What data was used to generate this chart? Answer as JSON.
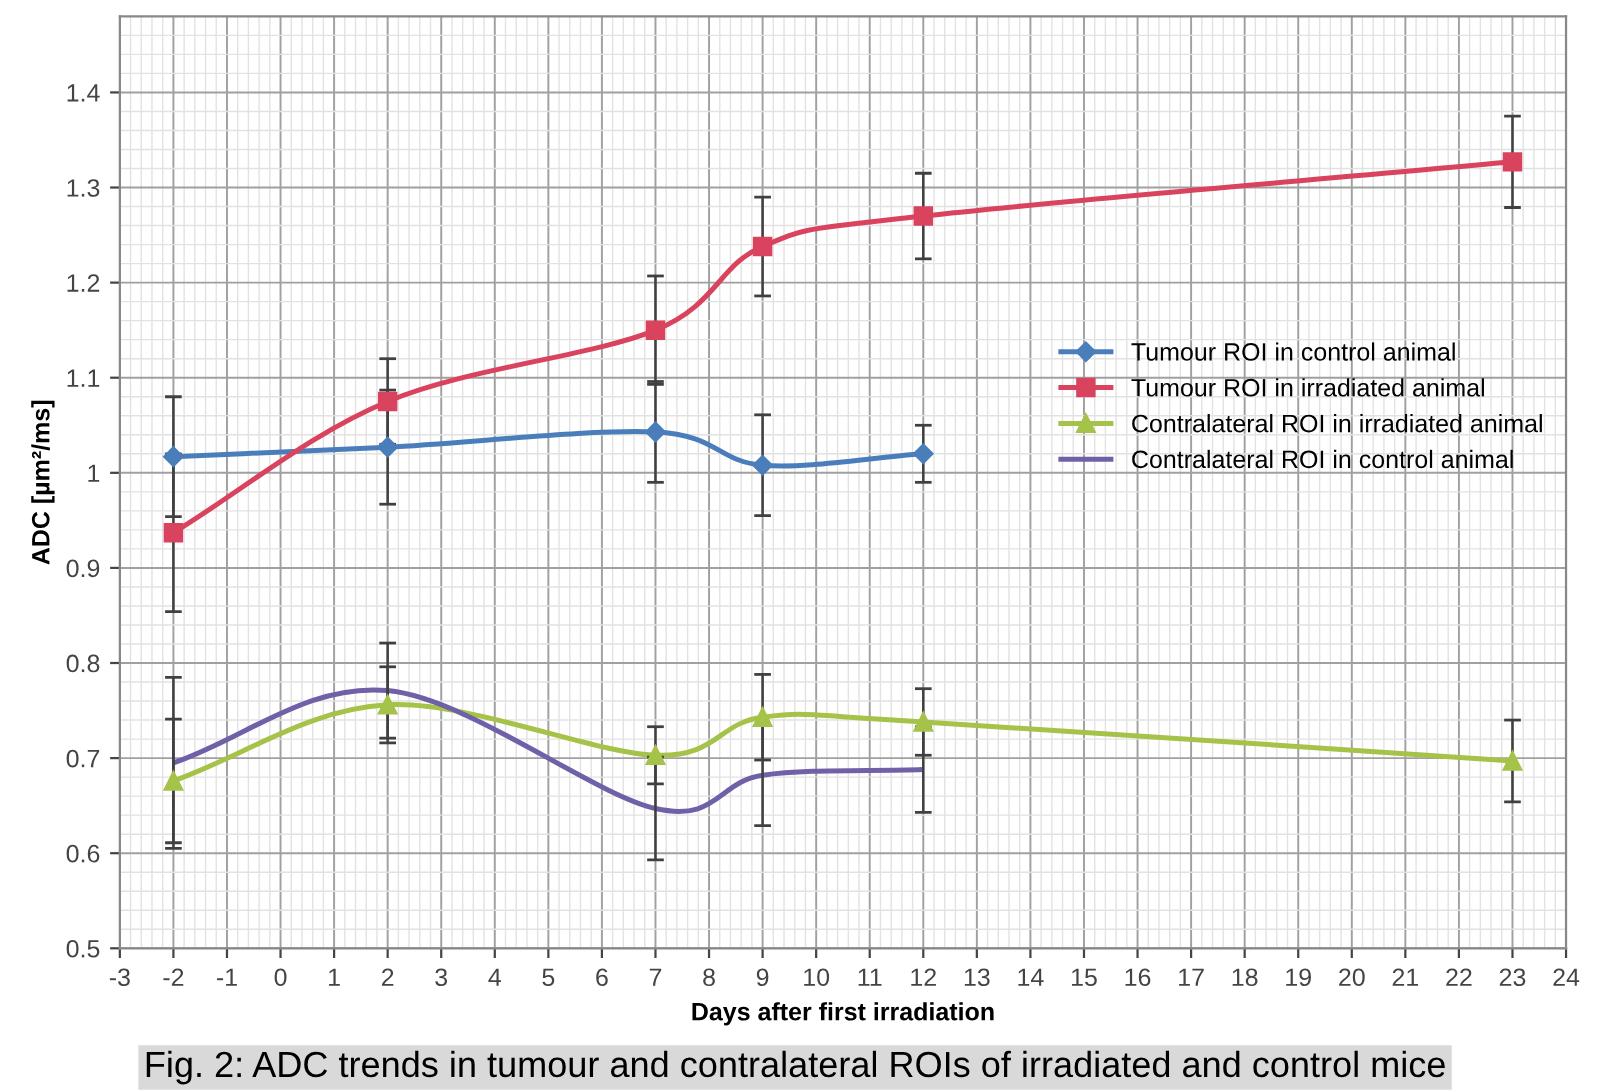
{
  "chart_data": {
    "type": "line",
    "xlabel": "Days after first irradiation",
    "ylabel": "ADC [µm²/ms]",
    "xlim": [
      -3,
      24
    ],
    "xticks": [
      -3,
      -2,
      -1,
      0,
      1,
      2,
      3,
      4,
      5,
      6,
      7,
      8,
      9,
      10,
      11,
      12,
      13,
      14,
      15,
      16,
      17,
      18,
      19,
      20,
      21,
      22,
      23,
      24
    ],
    "ylim": [
      0.5,
      1.48
    ],
    "yticks": [
      0.5,
      0.6,
      0.7,
      0.8,
      0.9,
      1,
      1.1,
      1.2,
      1.3,
      1.4
    ],
    "grid": true,
    "legend": "right",
    "line_style": "solid",
    "series": [
      {
        "name": "Tumour ROI in control animal",
        "color": "#4a7ebb",
        "marker": "diamond",
        "x": [
          -2,
          2,
          7,
          9,
          12
        ],
        "values": [
          1.017,
          1.027,
          1.043,
          1.008,
          1.02
        ],
        "errors": [
          0.063,
          0.06,
          0.053,
          0.053,
          0.03
        ]
      },
      {
        "name": "Tumour ROI in irradiated animal",
        "color": "#d9435e",
        "marker": "square",
        "x": [
          -2,
          2,
          7,
          9,
          12,
          23
        ],
        "values": [
          0.937,
          1.075,
          1.15,
          1.238,
          1.27,
          1.327
        ],
        "errors": [
          0.083,
          0.045,
          0.057,
          0.052,
          0.045,
          0.048
        ]
      },
      {
        "name": "Contralateral ROI in irradiated animal",
        "color": "#a5c249",
        "marker": "triangle",
        "x": [
          -2,
          2,
          7,
          9,
          12,
          23
        ],
        "values": [
          0.676,
          0.756,
          0.703,
          0.743,
          0.738,
          0.697
        ],
        "errors": [
          0.065,
          0.04,
          0.03,
          0.045,
          0.035,
          0.043
        ]
      },
      {
        "name": "Contralateral ROI in control animal",
        "color": "#7060a8",
        "marker": "none",
        "x": [
          -2,
          2,
          7,
          9,
          12
        ],
        "values": [
          0.695,
          0.771,
          0.647,
          0.682,
          0.688
        ],
        "errors": [
          0.09,
          0.05,
          0.054,
          0.053,
          0.045
        ]
      }
    ],
    "annotations": [
      "Fig. 2: ADC trends in tumour and contralateral ROIs of irradiated and control mice"
    ]
  }
}
